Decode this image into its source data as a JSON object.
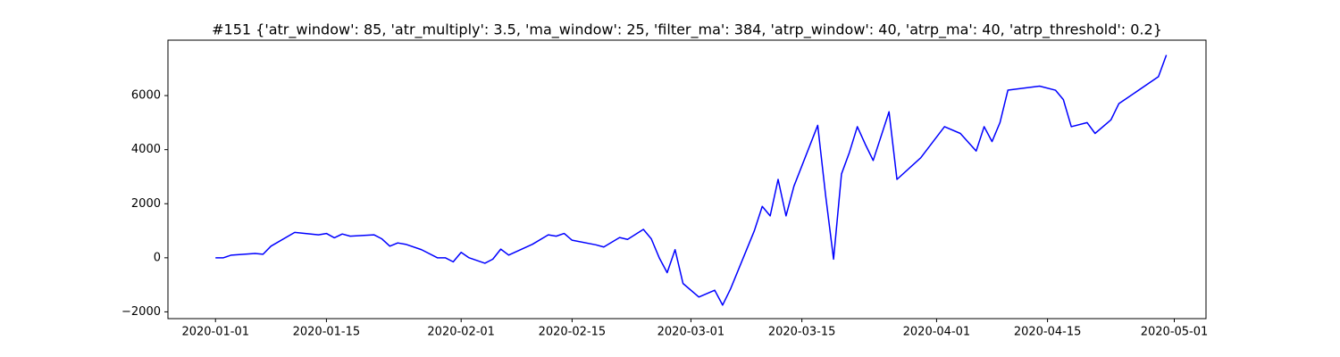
{
  "chart_data": {
    "type": "line",
    "title": "#151 {'atr_window': 85, 'atr_multiply': 3.5, 'ma_window': 25, 'filter_ma': 384, 'atrp_window': 40, 'atrp_ma': 40, 'atrp_threshold': 0.2}",
    "x": [
      "2020-01-01",
      "2020-01-02",
      "2020-01-03",
      "2020-01-06",
      "2020-01-07",
      "2020-01-08",
      "2020-01-11",
      "2020-01-14",
      "2020-01-15",
      "2020-01-16",
      "2020-01-17",
      "2020-01-18",
      "2020-01-21",
      "2020-01-22",
      "2020-01-23",
      "2020-01-24",
      "2020-01-25",
      "2020-01-27",
      "2020-01-29",
      "2020-01-30",
      "2020-01-31",
      "2020-02-01",
      "2020-02-02",
      "2020-02-04",
      "2020-02-05",
      "2020-02-06",
      "2020-02-07",
      "2020-02-10",
      "2020-02-12",
      "2020-02-13",
      "2020-02-14",
      "2020-02-15",
      "2020-02-18",
      "2020-02-19",
      "2020-02-21",
      "2020-02-22",
      "2020-02-24",
      "2020-02-25",
      "2020-02-26",
      "2020-02-27",
      "2020-02-28",
      "2020-02-29",
      "2020-03-02",
      "2020-03-04",
      "2020-03-05",
      "2020-03-06",
      "2020-03-09",
      "2020-03-10",
      "2020-03-11",
      "2020-03-12",
      "2020-03-13",
      "2020-03-14",
      "2020-03-17",
      "2020-03-18",
      "2020-03-19",
      "2020-03-20",
      "2020-03-21",
      "2020-03-22",
      "2020-03-23",
      "2020-03-24",
      "2020-03-26",
      "2020-03-27",
      "2020-03-30",
      "2020-04-02",
      "2020-04-04",
      "2020-04-06",
      "2020-04-07",
      "2020-04-08",
      "2020-04-09",
      "2020-04-10",
      "2020-04-14",
      "2020-04-16",
      "2020-04-17",
      "2020-04-18",
      "2020-04-20",
      "2020-04-21",
      "2020-04-23",
      "2020-04-24",
      "2020-04-25",
      "2020-04-29",
      "2020-04-30"
    ],
    "series": [
      {
        "color": "#0000ff",
        "values": [
          0,
          0,
          100,
          160,
          130,
          430,
          940,
          850,
          900,
          740,
          880,
          800,
          850,
          700,
          430,
          550,
          500,
          300,
          0,
          0,
          -150,
          200,
          0,
          -200,
          -50,
          320,
          100,
          500,
          850,
          800,
          900,
          650,
          480,
          400,
          750,
          680,
          1050,
          700,
          0,
          -550,
          300,
          -950,
          -1450,
          -1200,
          -1750,
          -1150,
          1000,
          1900,
          1550,
          2900,
          1550,
          2650,
          4900,
          2300,
          -50,
          3100,
          3900,
          4850,
          4200,
          3600,
          5400,
          2900,
          3700,
          4850,
          4600,
          3950,
          4850,
          4300,
          5000,
          6200,
          6350,
          6200,
          5850,
          4850,
          5000,
          4600,
          5100,
          5700,
          5900,
          6700,
          7500
        ]
      }
    ],
    "xlim": [
      "2019-12-26",
      "2020-05-05"
    ],
    "xticks": [
      "2020-01-01",
      "2020-01-15",
      "2020-02-01",
      "2020-02-15",
      "2020-03-01",
      "2020-03-15",
      "2020-04-01",
      "2020-04-15",
      "2020-05-01"
    ],
    "ylim": [
      -2250,
      8050
    ],
    "yticks": [
      {
        "value": -2000,
        "label": "−2000"
      },
      0,
      2000,
      4000,
      6000
    ],
    "grid": false
  }
}
